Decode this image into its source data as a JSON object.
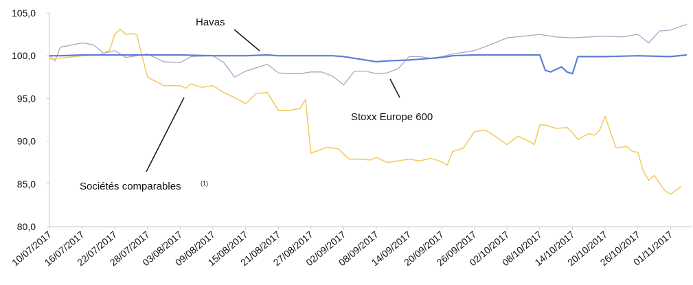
{
  "chart_data": {
    "type": "line",
    "title": "",
    "xlabel": "",
    "ylabel": "",
    "ylim": [
      80,
      105
    ],
    "y_ticks": [
      "80,0",
      "85,0",
      "90,0",
      "95,0",
      "100,0",
      "105,0"
    ],
    "x_tick_labels": [
      "10/07/2017",
      "16/07/2017",
      "22/07/2017",
      "28/07/2017",
      "03/08/2017",
      "09/08/2017",
      "15/08/2017",
      "21/08/2017",
      "27/08/2017",
      "02/09/2017",
      "08/09/2017",
      "14/09/2017",
      "20/09/2017",
      "26/09/2017",
      "02/10/2017",
      "08/10/2017",
      "14/10/2017",
      "20/10/2017",
      "26/10/2017",
      "01/11/2017"
    ],
    "grid": false,
    "series": [
      {
        "name": "Havas",
        "color": "#5b7fd6",
        "x": [
          "10/07/2017",
          "12/07/2017",
          "16/07/2017",
          "22/07/2017",
          "28/07/2017",
          "03/08/2017",
          "09/08/2017",
          "15/08/2017",
          "19/08/2017",
          "21/08/2017",
          "27/08/2017",
          "31/08/2017",
          "02/09/2017",
          "08/09/2017",
          "10/09/2017",
          "14/09/2017",
          "16/09/2017",
          "20/09/2017",
          "22/09/2017",
          "26/09/2017",
          "02/10/2017",
          "08/10/2017",
          "09/10/2017",
          "10/10/2017",
          "12/10/2017",
          "13/10/2017",
          "14/10/2017",
          "15/10/2017",
          "16/10/2017",
          "20/10/2017",
          "26/10/2017",
          "01/11/2017",
          "04/11/2017"
        ],
        "values": [
          100.0,
          100.0,
          100.1,
          100.1,
          100.1,
          100.1,
          100.0,
          100.0,
          100.1,
          100.0,
          100.0,
          100.0,
          99.9,
          99.3,
          99.4,
          99.5,
          99.6,
          99.8,
          100.0,
          100.1,
          100.1,
          100.1,
          98.3,
          98.1,
          98.7,
          98.1,
          97.9,
          99.9,
          99.9,
          99.9,
          100.0,
          99.9,
          100.1
        ]
      },
      {
        "name": "Stoxx Europe 600",
        "color": "#a8a8c4",
        "x": [
          "10/07/2017",
          "11/07/2017",
          "12/07/2017",
          "16/07/2017",
          "18/07/2017",
          "20/07/2017",
          "22/07/2017",
          "24/07/2017",
          "28/07/2017",
          "31/07/2017",
          "03/08/2017",
          "05/08/2017",
          "09/08/2017",
          "11/08/2017",
          "13/08/2017",
          "15/08/2017",
          "17/08/2017",
          "19/08/2017",
          "21/08/2017",
          "23/08/2017",
          "25/08/2017",
          "27/08/2017",
          "29/08/2017",
          "31/08/2017",
          "02/09/2017",
          "04/09/2017",
          "06/09/2017",
          "08/09/2017",
          "10/09/2017",
          "12/09/2017",
          "14/09/2017",
          "16/09/2017",
          "18/09/2017",
          "20/09/2017",
          "22/09/2017",
          "26/09/2017",
          "29/09/2017",
          "02/10/2017",
          "05/10/2017",
          "08/10/2017",
          "11/10/2017",
          "14/10/2017",
          "17/10/2017",
          "20/10/2017",
          "23/10/2017",
          "26/10/2017",
          "28/10/2017",
          "30/10/2017",
          "01/11/2017",
          "04/11/2017"
        ],
        "values": [
          100.0,
          99.4,
          101.0,
          101.5,
          101.3,
          100.3,
          100.6,
          99.8,
          100.2,
          99.3,
          99.2,
          99.9,
          100.0,
          99.2,
          97.5,
          98.2,
          98.6,
          99.0,
          98.0,
          97.9,
          97.9,
          98.1,
          98.1,
          97.6,
          96.6,
          98.2,
          98.2,
          97.9,
          98.0,
          98.5,
          99.9,
          99.9,
          99.7,
          99.9,
          100.2,
          100.6,
          101.3,
          102.1,
          102.3,
          102.5,
          102.2,
          102.1,
          102.2,
          102.3,
          102.2,
          102.5,
          101.5,
          102.9,
          103.0,
          103.7
        ]
      },
      {
        "name": "Sociétés comparables",
        "color": "#f5c85a",
        "x": [
          "10/07/2017",
          "16/07/2017",
          "19/07/2017",
          "21/07/2017",
          "22/07/2017",
          "23/07/2017",
          "24/07/2017",
          "25/07/2017",
          "26/07/2017",
          "27/07/2017",
          "28/07/2017",
          "31/07/2017",
          "03/08/2017",
          "04/08/2017",
          "05/08/2017",
          "07/08/2017",
          "09/08/2017",
          "11/08/2017",
          "13/08/2017",
          "15/08/2017",
          "17/08/2017",
          "19/08/2017",
          "21/08/2017",
          "23/08/2017",
          "25/08/2017",
          "26/08/2017",
          "27/08/2017",
          "30/08/2017",
          "01/09/2017",
          "03/09/2017",
          "05/09/2017",
          "07/09/2017",
          "08/09/2017",
          "10/09/2017",
          "12/09/2017",
          "14/09/2017",
          "16/09/2017",
          "18/09/2017",
          "20/09/2017",
          "21/09/2017",
          "22/09/2017",
          "24/09/2017",
          "26/09/2017",
          "28/09/2017",
          "30/09/2017",
          "02/10/2017",
          "04/10/2017",
          "06/10/2017",
          "07/10/2017",
          "08/10/2017",
          "09/10/2017",
          "11/10/2017",
          "13/10/2017",
          "14/10/2017",
          "15/10/2017",
          "17/10/2017",
          "18/10/2017",
          "19/10/2017",
          "20/10/2017",
          "22/10/2017",
          "24/10/2017",
          "25/10/2017",
          "26/10/2017",
          "27/10/2017",
          "28/10/2017",
          "29/10/2017",
          "31/10/2017",
          "01/11/2017",
          "03/11/2017"
        ],
        "values": [
          99.6,
          100.0,
          100.1,
          100.6,
          102.5,
          103.1,
          102.5,
          102.6,
          102.5,
          100.0,
          97.5,
          96.5,
          96.5,
          96.2,
          96.7,
          96.3,
          96.5,
          95.7,
          95.1,
          94.4,
          95.6,
          95.7,
          93.6,
          93.6,
          93.8,
          94.9,
          88.6,
          89.3,
          89.1,
          87.9,
          87.9,
          87.8,
          88.1,
          87.5,
          87.7,
          87.9,
          87.7,
          88.0,
          87.6,
          87.2,
          88.8,
          89.2,
          91.1,
          91.3,
          90.5,
          89.6,
          90.6,
          90.0,
          89.6,
          91.9,
          91.9,
          91.5,
          91.6,
          91.0,
          90.2,
          90.9,
          90.7,
          91.3,
          92.9,
          89.2,
          89.4,
          88.8,
          88.7,
          86.5,
          85.4,
          86.0,
          84.2,
          83.8,
          84.7
        ]
      }
    ],
    "annotations": [
      {
        "text": "Havas",
        "series": 0
      },
      {
        "text": "Stoxx Europe 600",
        "series": 1
      },
      {
        "text": "Sociétés comparables",
        "superscript": "(1)",
        "series": 2
      }
    ]
  }
}
